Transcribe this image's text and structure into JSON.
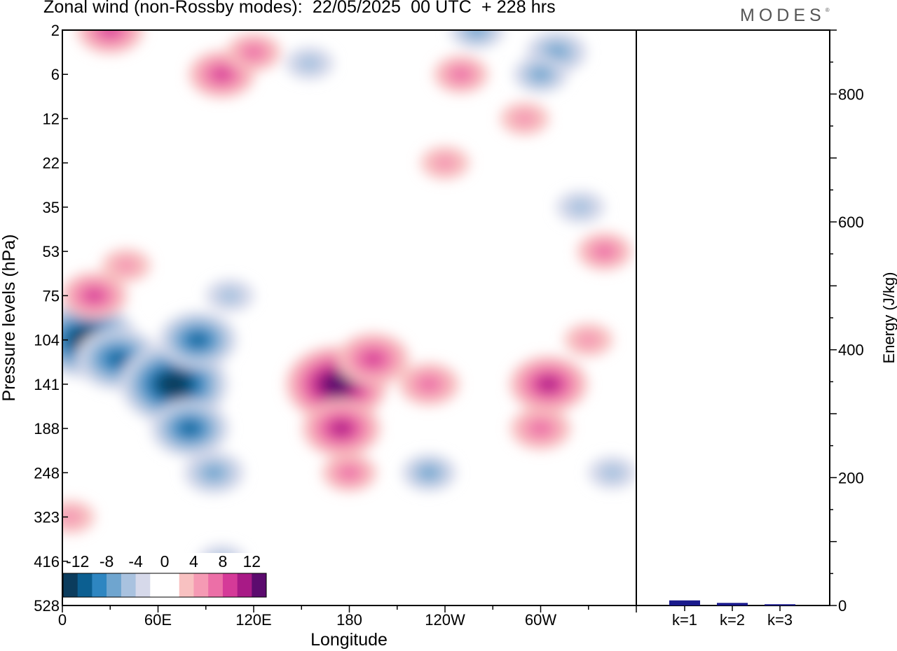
{
  "brand": "MODES",
  "chart_data": [
    {
      "type": "heatmap",
      "title": "Zonal wind (non-Rossby modes):  22/05/2025  00 UTC  + 228 hrs",
      "xlabel": "Longitude",
      "ylabel": "Pressure levels (hPa)",
      "x_ticks": [
        "0",
        "60E",
        "120E",
        "180",
        "120W",
        "60W"
      ],
      "y_ticks": [
        "2",
        "6",
        "12",
        "22",
        "35",
        "53",
        "75",
        "104",
        "141",
        "188",
        "248",
        "323",
        "416",
        "528"
      ],
      "colorbar": {
        "labels": [
          "-12",
          "-8",
          "-4",
          "0",
          "4",
          "8",
          "12"
        ],
        "colors": [
          "#0b3c5d",
          "#0c5f91",
          "#2e86c1",
          "#6fa5cf",
          "#a9c2df",
          "#d6d9ea",
          "#ffffff",
          "#ffffff",
          "#f8c1c1",
          "#f59ab4",
          "#ec6fa7",
          "#d53a98",
          "#a81a86",
          "#5c0b6e"
        ]
      },
      "blobs": [
        {
          "lon": 15,
          "lev": 104,
          "value": -13
        },
        {
          "lon": 35,
          "lev": 120,
          "value": -10
        },
        {
          "lon": 70,
          "lev": 141,
          "value": -14
        },
        {
          "lon": 80,
          "lev": 188,
          "value": -9
        },
        {
          "lon": 85,
          "lev": 104,
          "value": -9
        },
        {
          "lon": 95,
          "lev": 248,
          "value": -6
        },
        {
          "lon": 105,
          "lev": 75,
          "value": -4
        },
        {
          "lon": 100,
          "lev": 416,
          "value": -4
        },
        {
          "lon": 172,
          "lev": 141,
          "value": 13
        },
        {
          "lon": 175,
          "lev": 188,
          "value": 9
        },
        {
          "lon": 195,
          "lev": 120,
          "value": 8
        },
        {
          "lon": 230,
          "lev": 141,
          "value": 6
        },
        {
          "lon": 180,
          "lev": 248,
          "value": 5
        },
        {
          "lon": 305,
          "lev": 141,
          "value": 9
        },
        {
          "lon": 300,
          "lev": 188,
          "value": 6
        },
        {
          "lon": 330,
          "lev": 104,
          "value": 4
        },
        {
          "lon": 20,
          "lev": 75,
          "value": 7
        },
        {
          "lon": 40,
          "lev": 60,
          "value": 4
        },
        {
          "lon": 230,
          "lev": 248,
          "value": -5
        },
        {
          "lon": 345,
          "lev": 248,
          "value": -4
        },
        {
          "lon": 30,
          "lev": 2,
          "value": 7
        },
        {
          "lon": 100,
          "lev": 6,
          "value": 7
        },
        {
          "lon": 120,
          "lev": 4,
          "value": 5
        },
        {
          "lon": 250,
          "lev": 6,
          "value": 5
        },
        {
          "lon": 260,
          "lev": 2,
          "value": -5
        },
        {
          "lon": 310,
          "lev": 4,
          "value": -6
        },
        {
          "lon": 300,
          "lev": 6,
          "value": -5
        },
        {
          "lon": 240,
          "lev": 22,
          "value": 4
        },
        {
          "lon": 290,
          "lev": 12,
          "value": 4
        },
        {
          "lon": 340,
          "lev": 53,
          "value": 5
        },
        {
          "lon": 5,
          "lev": 323,
          "value": 4
        },
        {
          "lon": 155,
          "lev": 5,
          "value": -4
        },
        {
          "lon": 325,
          "lev": 35,
          "value": -4
        }
      ]
    },
    {
      "type": "bar",
      "ylabel": "Energy (J/kg)",
      "ylim": [
        0,
        900
      ],
      "y_ticks": [
        "0",
        "200",
        "400",
        "600",
        "800"
      ],
      "categories": [
        "k=1",
        "k=2",
        "k=3"
      ],
      "values": [
        8,
        4,
        2
      ],
      "bar_color": "#1a1a8c"
    }
  ]
}
